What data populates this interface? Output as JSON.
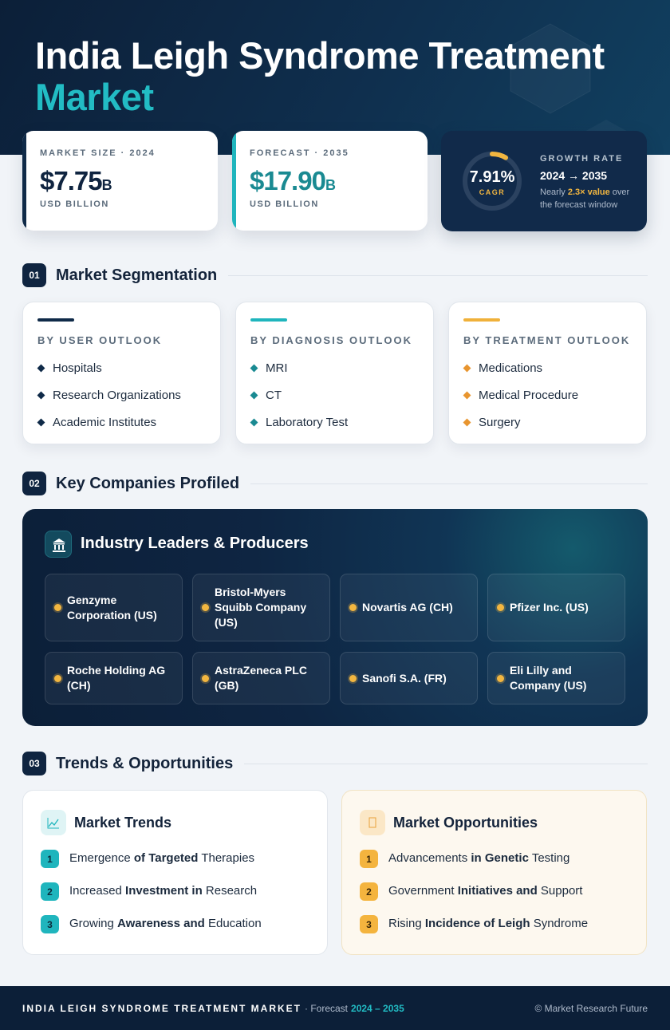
{
  "header": {
    "title": "India Leigh Syndrome Treatment",
    "title_highlight": "Market"
  },
  "stats": [
    {
      "label": "MARKET SIZE · 2024",
      "value": "$7.75",
      "unit": "B",
      "sub": "USD BILLION"
    },
    {
      "label": "FORECAST · 2035",
      "value": "$17.90",
      "unit": "B",
      "sub": "USD BILLION"
    }
  ],
  "growth": {
    "ring_value": "7.91%",
    "ring_label": "CAGR",
    "label": "GROWTH RATE",
    "period": "2024 → 2035",
    "note": [
      {
        "text": "Nearly "
      },
      {
        "text": "2.3× value",
        "highlight": true
      },
      {
        "text": " over the forecast window"
      }
    ]
  },
  "segmentation": {
    "number": "01",
    "title": "Market Segmentation",
    "columns": [
      {
        "heading": "BY USER OUTLOOK",
        "items": [
          "Hospitals",
          "Research Organizations",
          "Academic Institutes"
        ]
      },
      {
        "heading": "BY DIAGNOSIS OUTLOOK",
        "items": [
          "MRI",
          "CT",
          "Laboratory Test"
        ]
      },
      {
        "heading": "BY TREATMENT OUTLOOK",
        "items": [
          "Medications",
          "Medical Procedure",
          "Surgery"
        ]
      }
    ]
  },
  "companies": {
    "number": "02",
    "title": "Key Companies Profiled",
    "panel_title": "Industry Leaders & Producers",
    "items": [
      "Genzyme Corporation (US)",
      "Bristol-Myers Squibb Company (US)",
      "Novartis AG (CH)",
      "Pfizer Inc. (US)",
      "Roche Holding AG (CH)",
      "AstraZeneca PLC (GB)",
      "Sanofi S.A. (FR)",
      "Eli Lilly and Company (US)"
    ]
  },
  "trends": {
    "number": "03",
    "title": "Trends & Opportunities",
    "cards": [
      {
        "title": "Market Trends",
        "items": [
          {
            "number": "1",
            "parts": [
              {
                "text": "Emergence "
              },
              {
                "text": "of Targeted",
                "bold": true
              },
              {
                "text": " Therapies"
              }
            ]
          },
          {
            "number": "2",
            "parts": [
              {
                "text": "Increased "
              },
              {
                "text": "Investment in",
                "bold": true
              },
              {
                "text": " Research"
              }
            ]
          },
          {
            "number": "3",
            "parts": [
              {
                "text": "Growing "
              },
              {
                "text": "Awareness and",
                "bold": true
              },
              {
                "text": " Education"
              }
            ]
          }
        ]
      },
      {
        "title": "Market Opportunities",
        "items": [
          {
            "number": "1",
            "parts": [
              {
                "text": "Advancements "
              },
              {
                "text": "in Genetic",
                "bold": true
              },
              {
                "text": " Testing"
              }
            ]
          },
          {
            "number": "2",
            "parts": [
              {
                "text": "Government "
              },
              {
                "text": "Initiatives and",
                "bold": true
              },
              {
                "text": " Support"
              }
            ]
          },
          {
            "number": "3",
            "parts": [
              {
                "text": "Rising "
              },
              {
                "text": "Incidence of Leigh",
                "bold": true
              },
              {
                "text": " Syndrome"
              }
            ]
          }
        ]
      }
    ]
  },
  "footer": {
    "title": "INDIA LEIGH SYNDROME TREATMENT MARKET",
    "forecast_label": "· Forecast",
    "forecast_period": "2024 – 2035",
    "credit": "© Market Research Future"
  }
}
